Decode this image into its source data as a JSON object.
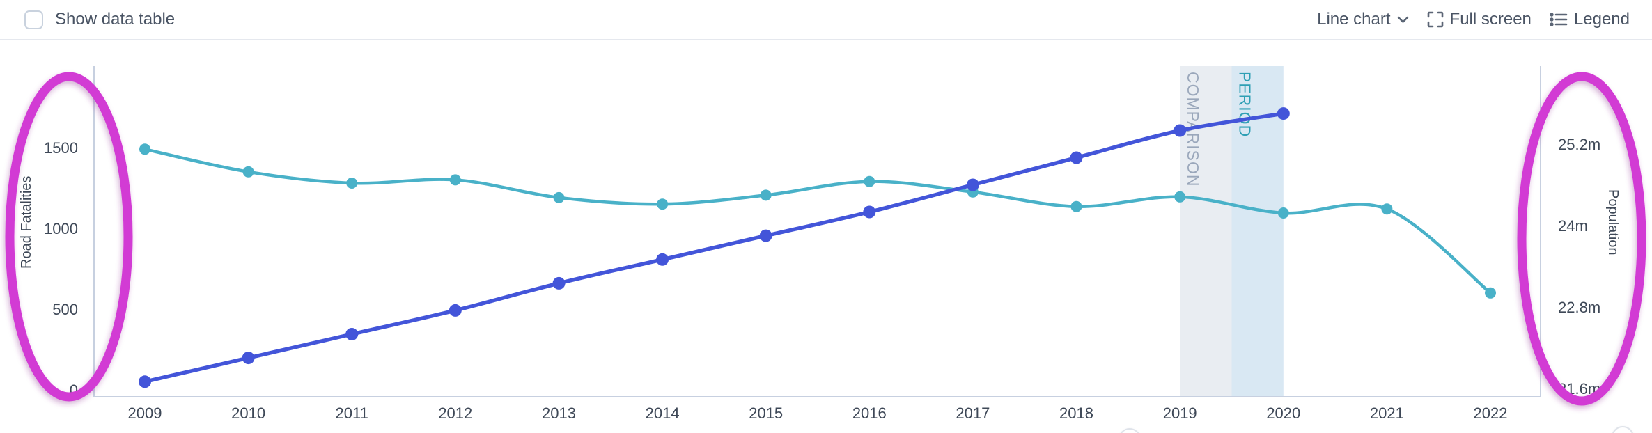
{
  "toolbar": {
    "show_data_table": {
      "label": "Show data table",
      "checked": false
    },
    "chart_type": {
      "label": "Line chart"
    },
    "fullscreen": {
      "label": "Full screen"
    },
    "legend": {
      "label": "Legend"
    }
  },
  "colors": {
    "road_fatalities_line": "#49b1c8",
    "population_line": "#4355d9",
    "axis_line": "#c7d0e0",
    "tick_text": "#3e4857",
    "axis_title_text": "#3e4857",
    "annotation_pink": "#d23ad4"
  },
  "chart_data": {
    "type": "line",
    "x": [
      2009,
      2010,
      2011,
      2012,
      2013,
      2014,
      2015,
      2016,
      2017,
      2018,
      2019,
      2020,
      2021,
      2022
    ],
    "series": [
      {
        "name": "Road Fatalities",
        "axis": "left",
        "color": "#49b1c8",
        "values": [
          1490,
          1350,
          1280,
          1300,
          1190,
          1150,
          1205,
          1290,
          1225,
          1135,
          1195,
          1095,
          1120,
          600
        ]
      },
      {
        "name": "Population",
        "axis": "right",
        "color": "#4355d9",
        "values": [
          21.7,
          22.05,
          22.4,
          22.75,
          23.15,
          23.5,
          23.85,
          24.2,
          24.6,
          25.0,
          25.4,
          25.65,
          null,
          null
        ]
      }
    ],
    "left_axis": {
      "label": "Road Fatalities",
      "range": [
        0,
        2050
      ],
      "ticks": [
        {
          "value": 0,
          "label": "0"
        },
        {
          "value": 500,
          "label": "500"
        },
        {
          "value": 1000,
          "label": "1000"
        },
        {
          "value": 1500,
          "label": "1500"
        }
      ]
    },
    "right_axis": {
      "label": "Population",
      "unit": "m",
      "range": [
        21.5,
        26.5
      ],
      "ticks": [
        {
          "value": 21.6,
          "label": "21.6m"
        },
        {
          "value": 22.8,
          "label": "22.8m"
        },
        {
          "value": 24,
          "label": "24m"
        },
        {
          "value": 25.2,
          "label": "25.2m"
        }
      ]
    },
    "x_axis": {
      "tick_labels": [
        "2009",
        "2010",
        "2011",
        "2012",
        "2013",
        "2014",
        "2015",
        "2016",
        "2017",
        "2018",
        "2019",
        "2020",
        "2021",
        "2022"
      ]
    },
    "highlight_bands": [
      {
        "label": "COMPARISON",
        "from": 2019,
        "to": 2019.5,
        "fill": "#e9edf2",
        "text_color": "#9aa7bb"
      },
      {
        "label": "PERIOD",
        "from": 2019.5,
        "to": 2020,
        "fill": "#d9e8f3",
        "text_color": "#2e9fb4"
      }
    ],
    "grid": false,
    "legend_position": "none"
  },
  "annotations": {
    "color": "#d23ad4",
    "highlight_ellipses": [
      {
        "target": "left-axis"
      },
      {
        "target": "right-axis"
      }
    ]
  }
}
